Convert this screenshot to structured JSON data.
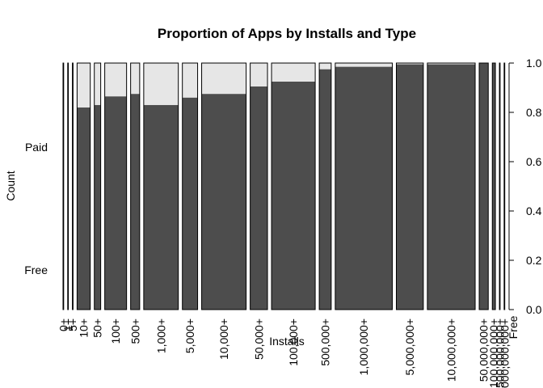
{
  "chart_data": {
    "type": "bar",
    "subtype": "spineplot",
    "title": "Proportion of Apps by Installs and Type",
    "xlabel": "Installs",
    "ylabel": "Count",
    "left_levels": [
      "Free",
      "Paid"
    ],
    "right_axis_ticks": [
      "0.0",
      "0.2",
      "0.4",
      "0.6",
      "0.8",
      "1.0"
    ],
    "right_axis_side_label": "Free",
    "ylim": [
      0,
      1
    ],
    "series": [
      {
        "name": "Free",
        "color": "#4d4d4d"
      },
      {
        "name": "Paid",
        "color": "#e6e6e6"
      }
    ],
    "categories": [
      "0+",
      "1+",
      "5+",
      "10+",
      "50+",
      "100+",
      "500+",
      "1,000+",
      "5,000+",
      "10,000+",
      "50,000+",
      "100,000+",
      "500,000+",
      "1,000,000+",
      "5,000,000+",
      "10,000,000+",
      "50,000,000+",
      "100,000,000+",
      "500,000,000+",
      "1,000,000,000+"
    ],
    "category_share": [
      0.0015,
      0.001,
      0.0015,
      0.032,
      0.0155,
      0.053,
      0.022,
      0.084,
      0.037,
      0.108,
      0.042,
      0.106,
      0.029,
      0.1385,
      0.0655,
      0.116,
      0.022,
      0.0075,
      0.0015,
      0.001
    ],
    "free_fraction": [
      0.0,
      0.7,
      0.85,
      0.82,
      0.83,
      0.865,
      0.875,
      0.83,
      0.86,
      0.875,
      0.905,
      0.925,
      0.975,
      0.985,
      0.995,
      0.995,
      1.0,
      1.0,
      1.0,
      1.0
    ]
  }
}
